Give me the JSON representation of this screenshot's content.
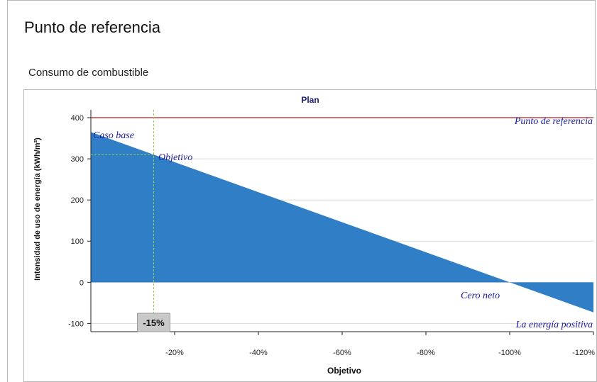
{
  "header": {
    "title": "Punto de referencia"
  },
  "section": {
    "title": "Consumo de combustible"
  },
  "colors": {
    "area": "#2f7ec6",
    "reference_line": "#b22222",
    "marker": "#8fd14f",
    "annotation": "#1a1aa0"
  },
  "chart_data": {
    "type": "area",
    "title": "Plan",
    "xlabel": "Objetivo",
    "ylabel": "Intensidad de uso de energía (kWh/m²)",
    "xlim": [
      0,
      -120
    ],
    "ylim": [
      -120,
      450
    ],
    "grid": true,
    "x_ticks": [
      -20,
      -40,
      -60,
      -80,
      -100,
      -120
    ],
    "x_tick_labels": [
      "-20%",
      "-40%",
      "-60%",
      "-80%",
      "-100%",
      "-120%"
    ],
    "y_ticks": [
      -100,
      0,
      100,
      200,
      300,
      400
    ],
    "y_tick_labels": [
      "-100",
      "0",
      "100",
      "200",
      "300",
      "400"
    ],
    "series": [
      {
        "x": [
          0,
          -120
        ],
        "y": [
          365,
          -73
        ]
      }
    ],
    "reference_value": 400,
    "target": {
      "x": -15,
      "y": 310,
      "label": "-15%"
    },
    "annotations": {
      "reference": "Punto de referencia",
      "base_case": "Caso base",
      "target": "Objetivo",
      "net_zero": "Cero neto",
      "positive_energy": "La energía positiva"
    }
  }
}
